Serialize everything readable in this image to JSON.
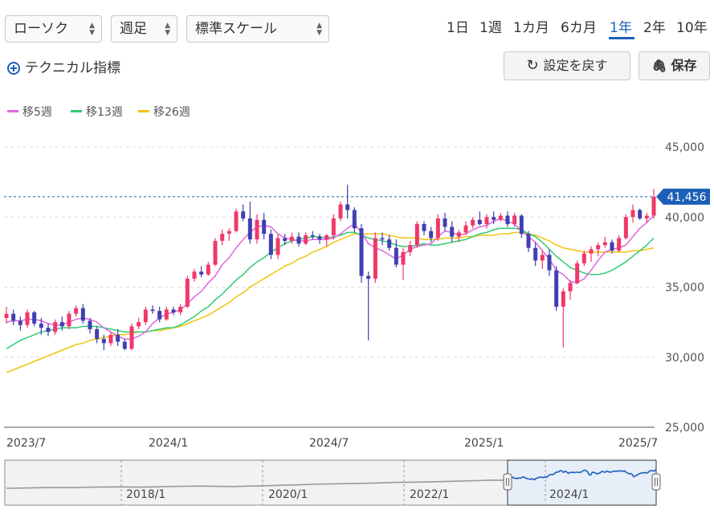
{
  "toolbar": {
    "chart_type": "ローソク",
    "period": "週足",
    "scale": "標準スケール",
    "ranges": [
      "1日",
      "1週",
      "1カ月",
      "6カ月",
      "1年",
      "2年",
      "10年"
    ],
    "active_range": "1年",
    "technical_label": "テクニカル指標",
    "reset_label": "設定を戻す",
    "save_label": "保存"
  },
  "legend": [
    {
      "label": "移5週",
      "color": "#e066e0"
    },
    {
      "label": "移13週",
      "color": "#2ecc71"
    },
    {
      "label": "移26週",
      "color": "#f2c40f"
    }
  ],
  "chart_data": {
    "type": "candlestick",
    "y_range": [
      25000,
      45000
    ],
    "y_ticks": [
      "45,000",
      "40,000",
      "35,000",
      "30,000",
      "25,000"
    ],
    "x_ticks": [
      "2023/7",
      "2024/1",
      "2024/7",
      "2025/1",
      "2025/7"
    ],
    "last_price_label": "41,456",
    "last_price": 41456,
    "colors": {
      "up": "#f0386b",
      "down": "#4040b0",
      "ma5": "#e066e0",
      "ma13": "#2ecc71",
      "ma26": "#f2c40f",
      "price_line": "#1c5fb8"
    },
    "candles": [
      [
        32800,
        33600,
        32400,
        33100
      ],
      [
        33100,
        33400,
        32300,
        32600
      ],
      [
        32600,
        32900,
        31900,
        32300
      ],
      [
        32300,
        33400,
        32100,
        33200
      ],
      [
        33200,
        33300,
        32200,
        32400
      ],
      [
        32400,
        32800,
        31600,
        32100
      ],
      [
        32100,
        32400,
        31500,
        31800
      ],
      [
        31800,
        32700,
        31600,
        32500
      ],
      [
        32500,
        32900,
        31900,
        32200
      ],
      [
        32200,
        33300,
        32000,
        33100
      ],
      [
        33100,
        33700,
        32900,
        33500
      ],
      [
        33500,
        33800,
        32400,
        32600
      ],
      [
        32600,
        32800,
        31700,
        32000
      ],
      [
        32000,
        32200,
        31000,
        31300
      ],
      [
        31300,
        31600,
        30500,
        31000
      ],
      [
        31000,
        31800,
        30800,
        31600
      ],
      [
        31600,
        32000,
        30800,
        31100
      ],
      [
        31100,
        31300,
        30500,
        30600
      ],
      [
        30600,
        32400,
        30500,
        32200
      ],
      [
        32200,
        32800,
        32000,
        32500
      ],
      [
        32500,
        33600,
        32300,
        33400
      ],
      [
        33400,
        33700,
        33100,
        33300
      ],
      [
        33300,
        33600,
        32500,
        32700
      ],
      [
        32700,
        33600,
        32600,
        33400
      ],
      [
        33400,
        33600,
        33000,
        33200
      ],
      [
        33200,
        33800,
        33000,
        33600
      ],
      [
        33600,
        35800,
        33500,
        35600
      ],
      [
        35600,
        36300,
        35400,
        36100
      ],
      [
        36100,
        36500,
        35700,
        35900
      ],
      [
        35900,
        36800,
        35800,
        36600
      ],
      [
        36600,
        38500,
        36500,
        38300
      ],
      [
        38300,
        39100,
        38000,
        38800
      ],
      [
        38800,
        39200,
        38300,
        39000
      ],
      [
        39000,
        40600,
        38900,
        40400
      ],
      [
        40400,
        40900,
        39700,
        39900
      ],
      [
        39900,
        41100,
        38100,
        38400
      ],
      [
        38400,
        40200,
        38100,
        39800
      ],
      [
        39800,
        40300,
        38400,
        38800
      ],
      [
        38800,
        39100,
        37000,
        37300
      ],
      [
        37300,
        38800,
        37000,
        38500
      ],
      [
        38500,
        38800,
        38000,
        38300
      ],
      [
        38300,
        38900,
        38100,
        38600
      ],
      [
        38600,
        38900,
        37900,
        38100
      ],
      [
        38100,
        38900,
        38000,
        38700
      ],
      [
        38700,
        39000,
        38400,
        38600
      ],
      [
        38600,
        38800,
        38100,
        38400
      ],
      [
        38400,
        38800,
        37900,
        38700
      ],
      [
        38700,
        40200,
        38400,
        39900
      ],
      [
        39900,
        41100,
        39700,
        40900
      ],
      [
        40900,
        42300,
        39900,
        40500
      ],
      [
        40500,
        40700,
        38900,
        39200
      ],
      [
        39200,
        39500,
        35300,
        35800
      ],
      [
        35800,
        36100,
        31200,
        35600
      ],
      [
        35600,
        38900,
        35300,
        38500
      ],
      [
        38500,
        38900,
        38000,
        38400
      ],
      [
        38400,
        38700,
        37600,
        37800
      ],
      [
        37800,
        38400,
        36400,
        36600
      ],
      [
        36600,
        37800,
        35500,
        37500
      ],
      [
        37500,
        38300,
        37200,
        38000
      ],
      [
        38000,
        39700,
        37800,
        39500
      ],
      [
        39500,
        39700,
        38700,
        39000
      ],
      [
        39000,
        39300,
        38200,
        38500
      ],
      [
        38500,
        40200,
        38300,
        39900
      ],
      [
        39900,
        40300,
        39000,
        39300
      ],
      [
        39300,
        39700,
        38200,
        38600
      ],
      [
        38600,
        39100,
        38200,
        38900
      ],
      [
        38900,
        39700,
        38700,
        39400
      ],
      [
        39400,
        40000,
        39200,
        39800
      ],
      [
        39800,
        40400,
        39400,
        39500
      ],
      [
        39500,
        40200,
        39200,
        40000
      ],
      [
        40000,
        40400,
        39500,
        39800
      ],
      [
        39800,
        40300,
        39700,
        40100
      ],
      [
        40100,
        40400,
        39300,
        39500
      ],
      [
        39500,
        40300,
        39300,
        40100
      ],
      [
        40100,
        40200,
        38500,
        38800
      ],
      [
        38800,
        39000,
        37500,
        37800
      ],
      [
        37800,
        38200,
        36500,
        36900
      ],
      [
        36900,
        37600,
        36300,
        37300
      ],
      [
        37300,
        37700,
        35800,
        36200
      ],
      [
        36200,
        36500,
        33300,
        33600
      ],
      [
        33600,
        34900,
        30700,
        34700
      ],
      [
        34700,
        35500,
        34100,
        35300
      ],
      [
        35300,
        36900,
        35200,
        36700
      ],
      [
        36700,
        37600,
        36500,
        37400
      ],
      [
        37400,
        37900,
        36800,
        37700
      ],
      [
        37700,
        38200,
        37200,
        38000
      ],
      [
        38000,
        38600,
        37800,
        38200
      ],
      [
        38200,
        38400,
        37400,
        37600
      ],
      [
        37600,
        38700,
        37500,
        38500
      ],
      [
        38500,
        40200,
        38400,
        40000
      ],
      [
        40000,
        40900,
        39600,
        40500
      ],
      [
        40500,
        40600,
        39800,
        39900
      ],
      [
        39900,
        40300,
        39600,
        40100
      ],
      [
        40100,
        42000,
        39900,
        41456
      ]
    ],
    "ma5": [
      32500,
      32600,
      32600,
      32700,
      32700,
      32600,
      32400,
      32300,
      32300,
      32500,
      32700,
      32800,
      32700,
      32500,
      32100,
      31800,
      31500,
      31300,
      31300,
      31500,
      31800,
      32400,
      32800,
      33100,
      33200,
      33400,
      33800,
      34300,
      34700,
      35300,
      35800,
      36600,
      37100,
      37800,
      38400,
      38900,
      39300,
      39400,
      39300,
      38800,
      38500,
      38400,
      38300,
      38300,
      38400,
      38400,
      38400,
      38500,
      38800,
      39200,
      39500,
      38900,
      38100,
      37800,
      37600,
      37300,
      37000,
      37300,
      37700,
      37900,
      38000,
      38100,
      38600,
      39000,
      38900,
      38700,
      38800,
      39100,
      39300,
      39400,
      39700,
      39900,
      39700,
      39500,
      39000,
      38600,
      38200,
      37600,
      37000,
      36200,
      35900,
      35400,
      35300,
      35600,
      36200,
      36900,
      37500,
      37700,
      37800,
      38000,
      38600,
      39200,
      39600,
      40100
    ],
    "ma13": [
      30600,
      30900,
      31200,
      31400,
      31600,
      31800,
      31900,
      32000,
      32100,
      32100,
      32100,
      32200,
      32200,
      32200,
      32100,
      32000,
      31900,
      31800,
      31800,
      31800,
      31800,
      31900,
      32000,
      32100,
      32100,
      32300,
      32600,
      32900,
      33300,
      33600,
      34100,
      34500,
      35000,
      35500,
      35900,
      36400,
      36800,
      37100,
      37500,
      37800,
      38100,
      38300,
      38400,
      38500,
      38600,
      38600,
      38500,
      38600,
      38700,
      38900,
      38900,
      38700,
      38500,
      38400,
      38300,
      38200,
      38000,
      37900,
      37900,
      38000,
      38100,
      38000,
      38000,
      38100,
      38200,
      38300,
      38400,
      38600,
      38800,
      38900,
      39100,
      39200,
      39200,
      39200,
      39100,
      38800,
      38600,
      38200,
      37700,
      37200,
      36800,
      36400,
      36200,
      36000,
      35900,
      35900,
      36000,
      36200,
      36500,
      36800,
      37200,
      37600,
      38000,
      38500
    ],
    "ma26": [
      28900,
      29100,
      29300,
      29500,
      29700,
      29900,
      30100,
      30300,
      30500,
      30700,
      30900,
      31000,
      31200,
      31300,
      31400,
      31500,
      31600,
      31600,
      31700,
      31800,
      31800,
      31900,
      31900,
      32000,
      32100,
      32200,
      32400,
      32600,
      32800,
      33000,
      33300,
      33600,
      33900,
      34300,
      34600,
      35000,
      35300,
      35600,
      35900,
      36200,
      36500,
      36700,
      37000,
      37200,
      37500,
      37700,
      37900,
      38200,
      38400,
      38600,
      38800,
      38800,
      38800,
      38800,
      38800,
      38700,
      38600,
      38500,
      38500,
      38500,
      38400,
      38400,
      38400,
      38500,
      38500,
      38500,
      38600,
      38600,
      38700,
      38700,
      38700,
      38800,
      38800,
      38900,
      38900,
      38800,
      38700,
      38500,
      38300,
      38000,
      37800,
      37700,
      37600,
      37500,
      37500,
      37500,
      37500,
      37500,
      37500,
      37500,
      37600,
      37600,
      37700,
      37800
    ]
  },
  "navigator": {
    "labels": [
      "2018/1",
      "2020/1",
      "2022/1",
      "2024/1"
    ]
  }
}
